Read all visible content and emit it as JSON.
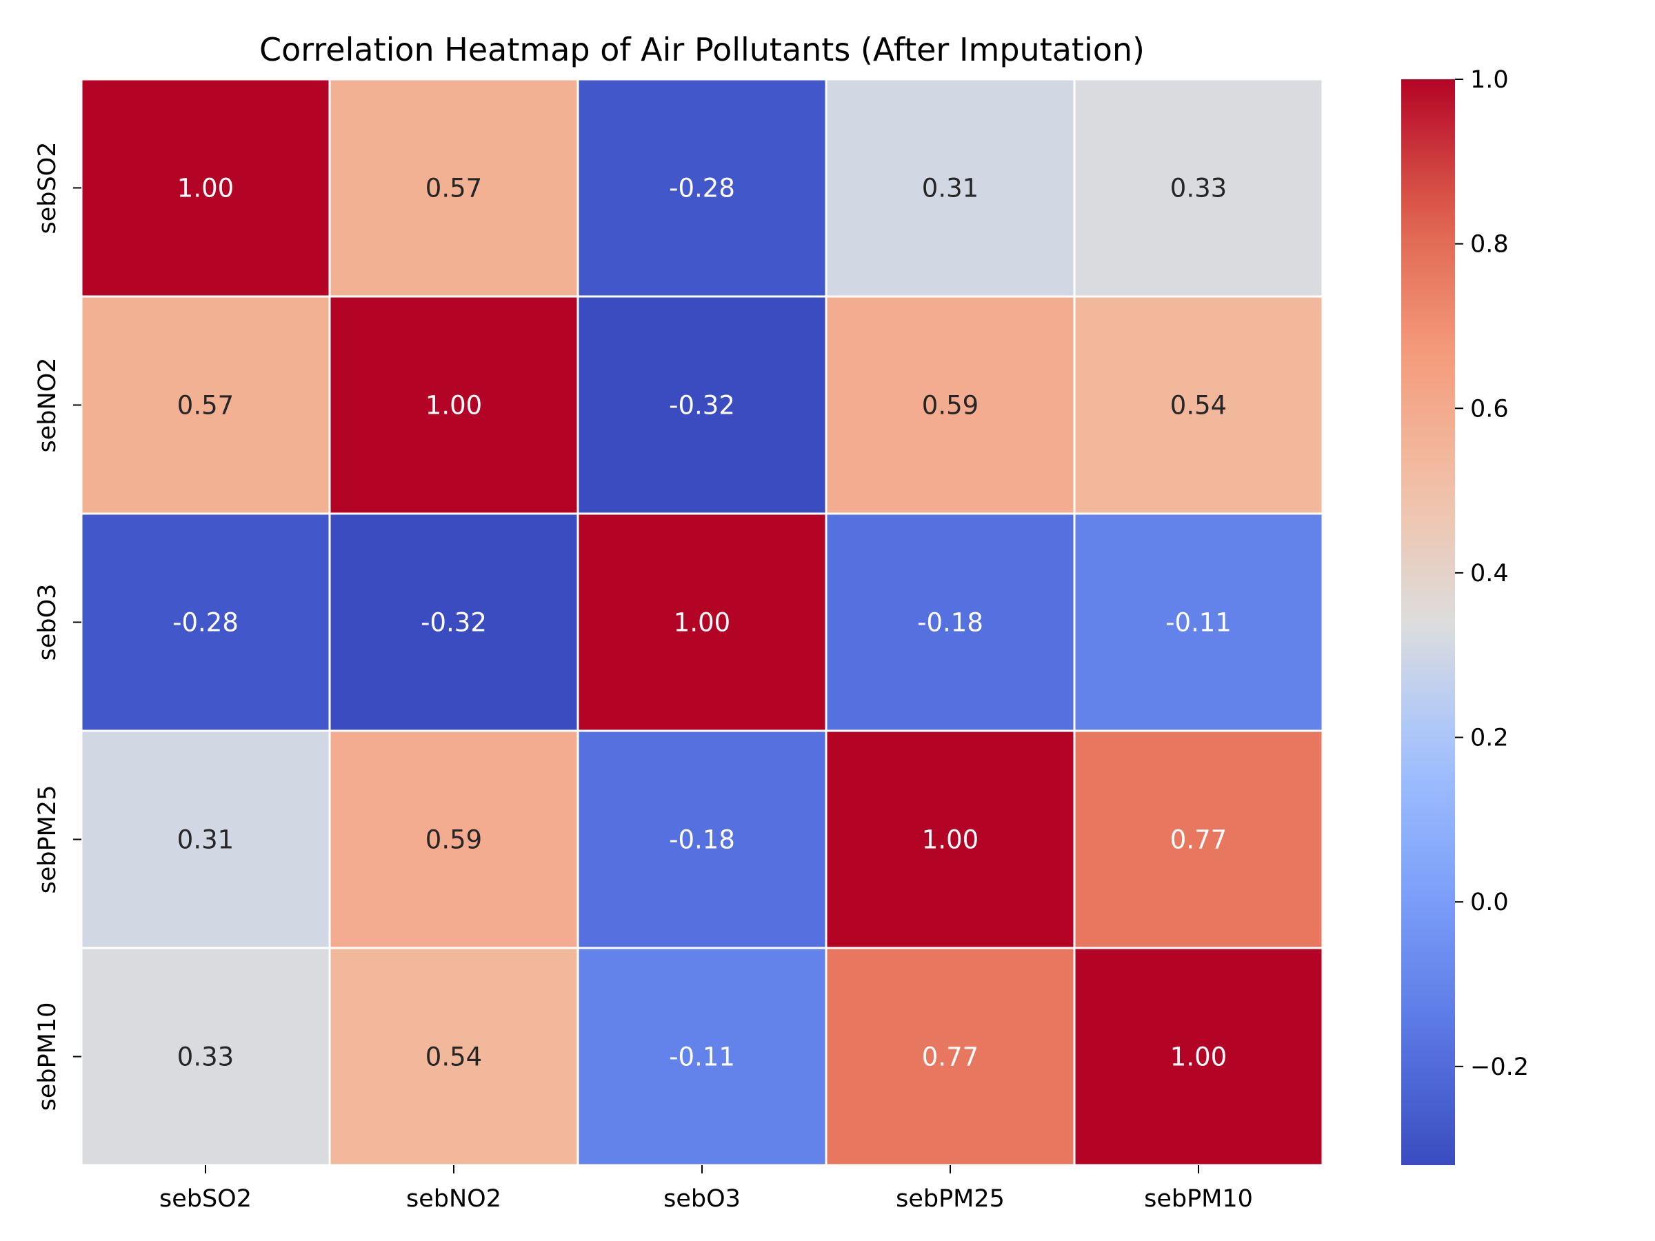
{
  "chart_data": {
    "type": "heatmap",
    "title": "Correlation Heatmap of Air Pollutants (After Imputation)",
    "xlabel": "",
    "ylabel": "",
    "x_categories": [
      "sebSO2",
      "sebNO2",
      "sebO3",
      "sebPM25",
      "sebPM10"
    ],
    "y_categories": [
      "sebSO2",
      "sebNO2",
      "sebO3",
      "sebPM25",
      "sebPM10"
    ],
    "values": [
      [
        1.0,
        0.57,
        -0.28,
        0.31,
        0.33
      ],
      [
        0.57,
        1.0,
        -0.32,
        0.59,
        0.54
      ],
      [
        -0.28,
        -0.32,
        1.0,
        -0.18,
        -0.11
      ],
      [
        0.31,
        0.59,
        -0.18,
        1.0,
        0.77
      ],
      [
        0.33,
        0.54,
        -0.11,
        0.77,
        1.0
      ]
    ],
    "cell_labels": [
      [
        "1.00",
        "0.57",
        "-0.28",
        "0.31",
        "0.33"
      ],
      [
        "0.57",
        "1.00",
        "-0.32",
        "0.59",
        "0.54"
      ],
      [
        "-0.28",
        "-0.32",
        "1.00",
        "-0.18",
        "-0.11"
      ],
      [
        "0.31",
        "0.59",
        "-0.18",
        "1.00",
        "0.77"
      ],
      [
        "0.33",
        "0.54",
        "-0.11",
        "0.77",
        "1.00"
      ]
    ],
    "colormap": "coolwarm",
    "colorbar": {
      "vmin": -0.32,
      "vmax": 1.0,
      "ticks": [
        -0.2,
        0.0,
        0.2,
        0.4,
        0.6,
        0.8,
        1.0
      ],
      "tick_labels": [
        "−0.2",
        "0.0",
        "0.2",
        "0.4",
        "0.6",
        "0.8",
        "1.0"
      ]
    },
    "grid": false,
    "legend": "colorbar-right"
  }
}
